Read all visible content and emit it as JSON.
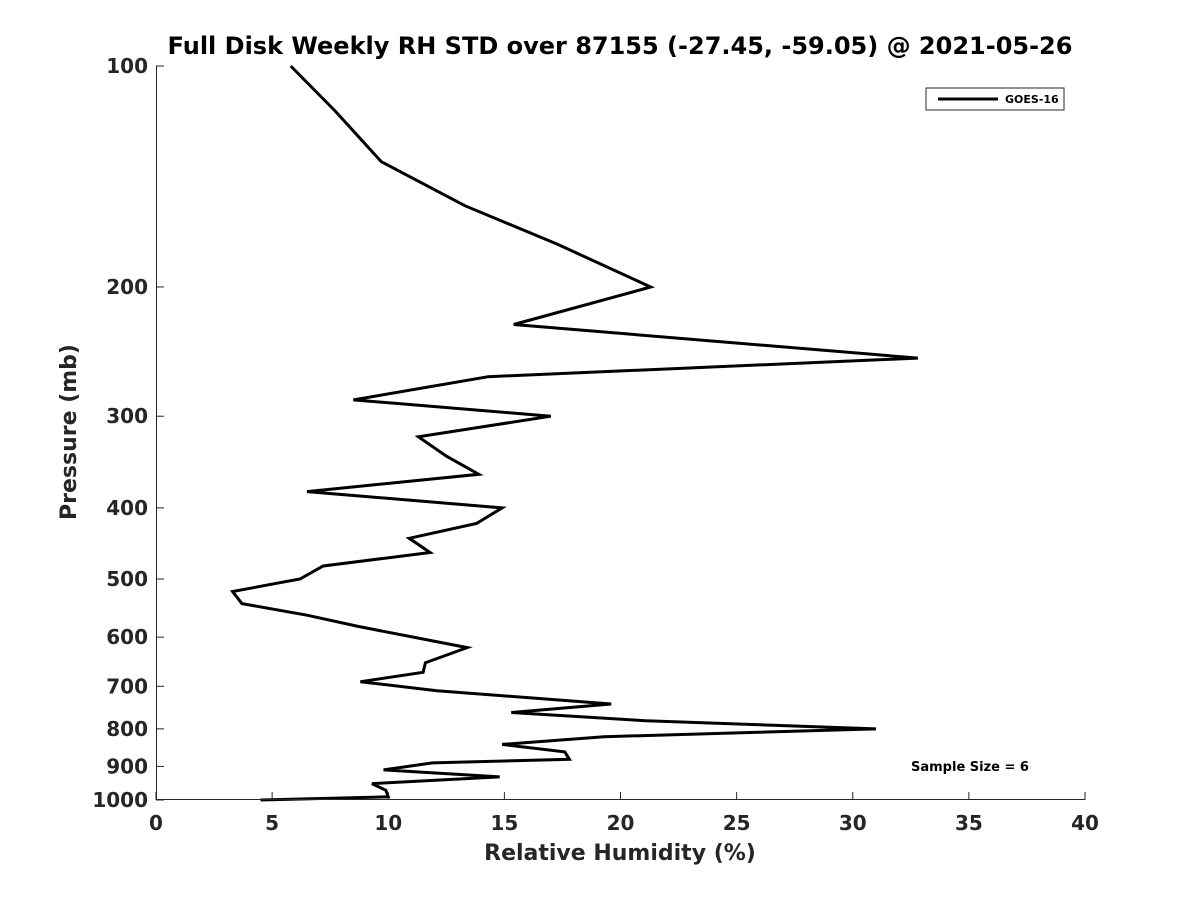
{
  "chart_data": {
    "type": "line",
    "title": "Full Disk Weekly RH STD over 87155 (-27.45, -59.05) @ 2021-05-26",
    "xlabel": "Relative Humidity (%)",
    "ylabel": "Pressure (mb)",
    "xlim": [
      0,
      40
    ],
    "ylim": [
      100,
      1000
    ],
    "yscale": "log",
    "y_reversed": true,
    "x_ticks": [
      0,
      5,
      10,
      15,
      20,
      25,
      30,
      35,
      40
    ],
    "y_ticks": [
      100,
      200,
      300,
      400,
      500,
      600,
      700,
      800,
      900,
      1000
    ],
    "grid": false,
    "legend_position": "top-right",
    "series": [
      {
        "name": "GOES-16",
        "color": "#000000",
        "x": [
          5.8,
          7.7,
          9.7,
          13.3,
          17.3,
          21.3,
          15.4,
          32.8,
          14.3,
          8.5,
          17.0,
          11.3,
          12.5,
          13.9,
          6.5,
          14.9,
          13.8,
          10.9,
          11.8,
          7.2,
          6.2,
          3.3,
          3.7,
          6.5,
          8.7,
          13.4,
          11.6,
          11.5,
          8.8,
          12.1,
          19.6,
          15.3,
          21.1,
          31.0,
          19.3,
          14.9,
          17.6,
          17.8,
          11.9,
          9.8,
          14.8,
          9.3,
          9.9,
          10.0,
          4.5
        ],
        "y": [
          100,
          115,
          135,
          155,
          175,
          200,
          225,
          250,
          265,
          285,
          300,
          320,
          340,
          360,
          380,
          400,
          420,
          440,
          460,
          480,
          500,
          520,
          540,
          560,
          580,
          620,
          650,
          670,
          690,
          710,
          740,
          760,
          780,
          800,
          820,
          840,
          860,
          880,
          890,
          910,
          930,
          950,
          970,
          990,
          1000
        ]
      }
    ],
    "annotation": "Sample Size = 6"
  }
}
